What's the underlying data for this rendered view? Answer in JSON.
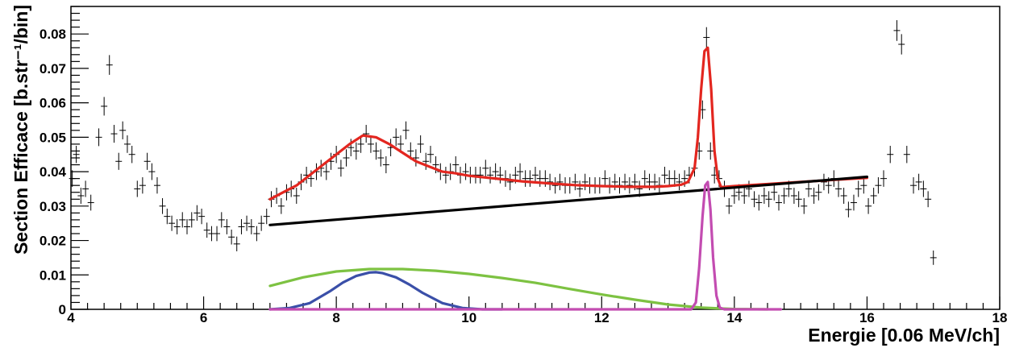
{
  "chart_data": {
    "type": "scatter",
    "xlabel": "Energie [0.06 MeV/ch]",
    "ylabel": "Section Efficace [b.str⁻¹/bin]",
    "xlim": [
      4,
      18
    ],
    "ylim": [
      0,
      0.088
    ],
    "x_ticks": [
      4,
      6,
      8,
      10,
      12,
      14,
      16,
      18
    ],
    "y_ticks": [
      0,
      0.01,
      0.02,
      0.03,
      0.04,
      0.05,
      0.06,
      0.07,
      0.08
    ],
    "y_tick_labels": [
      "0",
      "0.01",
      "0.02",
      "0.03",
      "0.04",
      "0.05",
      "0.06",
      "0.07",
      "0.08"
    ],
    "grid": false,
    "legend": "none",
    "series": [
      {
        "kind": "data-points-with-error-bars",
        "color": "#000000",
        "points": [
          [
            4.02,
            0.038
          ],
          [
            4.08,
            0.045
          ],
          [
            4.15,
            0.033
          ],
          [
            4.22,
            0.035
          ],
          [
            4.3,
            0.031
          ],
          [
            4.42,
            0.05
          ],
          [
            4.5,
            0.059
          ],
          [
            4.58,
            0.071
          ],
          [
            4.65,
            0.051
          ],
          [
            4.72,
            0.043
          ],
          [
            4.78,
            0.052
          ],
          [
            4.85,
            0.048
          ],
          [
            4.92,
            0.045
          ],
          [
            5.0,
            0.035
          ],
          [
            5.08,
            0.036
          ],
          [
            5.15,
            0.043
          ],
          [
            5.22,
            0.04
          ],
          [
            5.3,
            0.036
          ],
          [
            5.38,
            0.03
          ],
          [
            5.45,
            0.027
          ],
          [
            5.52,
            0.025
          ],
          [
            5.6,
            0.024
          ],
          [
            5.68,
            0.026
          ],
          [
            5.75,
            0.024
          ],
          [
            5.82,
            0.026
          ],
          [
            5.9,
            0.028
          ],
          [
            5.97,
            0.027
          ],
          [
            6.05,
            0.023
          ],
          [
            6.12,
            0.022
          ],
          [
            6.2,
            0.022
          ],
          [
            6.27,
            0.026
          ],
          [
            6.35,
            0.024
          ],
          [
            6.42,
            0.021
          ],
          [
            6.5,
            0.019
          ],
          [
            6.57,
            0.024
          ],
          [
            6.65,
            0.025
          ],
          [
            6.72,
            0.024
          ],
          [
            6.8,
            0.022
          ],
          [
            6.87,
            0.025
          ],
          [
            6.95,
            0.027
          ],
          [
            7.02,
            0.032
          ],
          [
            7.1,
            0.033
          ],
          [
            7.17,
            0.03
          ],
          [
            7.25,
            0.034
          ],
          [
            7.32,
            0.035
          ],
          [
            7.4,
            0.033
          ],
          [
            7.47,
            0.037
          ],
          [
            7.55,
            0.039
          ],
          [
            7.62,
            0.038
          ],
          [
            7.7,
            0.04
          ],
          [
            7.77,
            0.041
          ],
          [
            7.85,
            0.04
          ],
          [
            7.92,
            0.043
          ],
          [
            8.0,
            0.045
          ],
          [
            8.07,
            0.041
          ],
          [
            8.15,
            0.044
          ],
          [
            8.22,
            0.047
          ],
          [
            8.3,
            0.046
          ],
          [
            8.37,
            0.048
          ],
          [
            8.45,
            0.051
          ],
          [
            8.52,
            0.048
          ],
          [
            8.6,
            0.046
          ],
          [
            8.67,
            0.044
          ],
          [
            8.75,
            0.042
          ],
          [
            8.82,
            0.047
          ],
          [
            8.9,
            0.05
          ],
          [
            8.97,
            0.048
          ],
          [
            9.05,
            0.052
          ],
          [
            9.12,
            0.046
          ],
          [
            9.2,
            0.044
          ],
          [
            9.27,
            0.048
          ],
          [
            9.35,
            0.043
          ],
          [
            9.42,
            0.045
          ],
          [
            9.5,
            0.042
          ],
          [
            9.57,
            0.04
          ],
          [
            9.65,
            0.039
          ],
          [
            9.72,
            0.04
          ],
          [
            9.8,
            0.042
          ],
          [
            9.87,
            0.039
          ],
          [
            9.95,
            0.04
          ],
          [
            10.02,
            0.039
          ],
          [
            10.1,
            0.039
          ],
          [
            10.17,
            0.039
          ],
          [
            10.25,
            0.041
          ],
          [
            10.32,
            0.039
          ],
          [
            10.4,
            0.04
          ],
          [
            10.47,
            0.039
          ],
          [
            10.55,
            0.038
          ],
          [
            10.62,
            0.037
          ],
          [
            10.7,
            0.039
          ],
          [
            10.77,
            0.04
          ],
          [
            10.85,
            0.038
          ],
          [
            10.92,
            0.038
          ],
          [
            11.0,
            0.039
          ],
          [
            11.07,
            0.038
          ],
          [
            11.15,
            0.038
          ],
          [
            11.22,
            0.037
          ],
          [
            11.3,
            0.036
          ],
          [
            11.37,
            0.037
          ],
          [
            11.45,
            0.036
          ],
          [
            11.52,
            0.036
          ],
          [
            11.6,
            0.037
          ],
          [
            11.67,
            0.035
          ],
          [
            11.75,
            0.037
          ],
          [
            11.82,
            0.036
          ],
          [
            11.9,
            0.036
          ],
          [
            11.97,
            0.036
          ],
          [
            12.05,
            0.038
          ],
          [
            12.12,
            0.036
          ],
          [
            12.2,
            0.037
          ],
          [
            12.27,
            0.036
          ],
          [
            12.35,
            0.037
          ],
          [
            12.42,
            0.036
          ],
          [
            12.5,
            0.037
          ],
          [
            12.57,
            0.035
          ],
          [
            12.65,
            0.038
          ],
          [
            12.72,
            0.037
          ],
          [
            12.8,
            0.037
          ],
          [
            12.87,
            0.036
          ],
          [
            12.95,
            0.039
          ],
          [
            13.02,
            0.038
          ],
          [
            13.1,
            0.038
          ],
          [
            13.17,
            0.037
          ],
          [
            13.25,
            0.038
          ],
          [
            13.32,
            0.039
          ],
          [
            13.4,
            0.041
          ],
          [
            13.47,
            0.046
          ],
          [
            13.52,
            0.058
          ],
          [
            13.58,
            0.079
          ],
          [
            13.64,
            0.046
          ],
          [
            13.7,
            0.039
          ],
          [
            13.77,
            0.038
          ],
          [
            13.85,
            0.035
          ],
          [
            13.92,
            0.03
          ],
          [
            14.0,
            0.033
          ],
          [
            14.07,
            0.034
          ],
          [
            14.15,
            0.033
          ],
          [
            14.22,
            0.035
          ],
          [
            14.3,
            0.032
          ],
          [
            14.37,
            0.031
          ],
          [
            14.45,
            0.033
          ],
          [
            14.52,
            0.032
          ],
          [
            14.6,
            0.034
          ],
          [
            14.67,
            0.031
          ],
          [
            14.75,
            0.033
          ],
          [
            14.82,
            0.035
          ],
          [
            14.9,
            0.033
          ],
          [
            14.97,
            0.032
          ],
          [
            15.05,
            0.03
          ],
          [
            15.12,
            0.035
          ],
          [
            15.2,
            0.033
          ],
          [
            15.27,
            0.034
          ],
          [
            15.35,
            0.037
          ],
          [
            15.42,
            0.036
          ],
          [
            15.5,
            0.038
          ],
          [
            15.57,
            0.035
          ],
          [
            15.65,
            0.033
          ],
          [
            15.72,
            0.029
          ],
          [
            15.8,
            0.031
          ],
          [
            15.87,
            0.035
          ],
          [
            15.95,
            0.036
          ],
          [
            16.02,
            0.03
          ],
          [
            16.1,
            0.033
          ],
          [
            16.17,
            0.036
          ],
          [
            16.25,
            0.038
          ],
          [
            16.35,
            0.045
          ],
          [
            16.45,
            0.081
          ],
          [
            16.52,
            0.077
          ],
          [
            16.6,
            0.045
          ],
          [
            16.7,
            0.036
          ],
          [
            16.78,
            0.037
          ],
          [
            16.85,
            0.035
          ],
          [
            16.92,
            0.032
          ],
          [
            17.0,
            0.015
          ]
        ]
      },
      {
        "kind": "curve",
        "color": "#e3261f",
        "x": [
          7.0,
          7.2,
          7.4,
          7.6,
          7.8,
          8.0,
          8.2,
          8.4,
          8.6,
          8.8,
          9.0,
          9.2,
          9.4,
          9.6,
          9.8,
          10.0,
          10.4,
          10.8,
          11.2,
          11.6,
          12.0,
          12.4,
          12.8,
          13.0,
          13.2,
          13.3,
          13.4,
          13.45,
          13.5,
          13.55,
          13.6,
          13.65,
          13.7,
          13.75,
          13.8,
          14.0,
          14.5,
          15.0,
          15.5,
          16.0
        ],
        "values": [
          0.032,
          0.034,
          0.036,
          0.039,
          0.042,
          0.045,
          0.048,
          0.0505,
          0.05,
          0.048,
          0.0455,
          0.043,
          0.0415,
          0.04,
          0.0395,
          0.0388,
          0.038,
          0.0372,
          0.0366,
          0.0361,
          0.0358,
          0.0356,
          0.0356,
          0.0358,
          0.0362,
          0.037,
          0.041,
          0.05,
          0.064,
          0.075,
          0.076,
          0.064,
          0.046,
          0.038,
          0.0355,
          0.0358,
          0.0364,
          0.037,
          0.0376,
          0.0382
        ]
      },
      {
        "kind": "curve",
        "color": "#000000",
        "x": [
          7.0,
          16.0
        ],
        "values": [
          0.0245,
          0.0385
        ]
      },
      {
        "kind": "curve",
        "color": "#7dc242",
        "x": [
          7.0,
          7.5,
          8.0,
          8.5,
          9.0,
          9.5,
          10.0,
          10.5,
          11.0,
          11.5,
          12.0,
          12.5,
          13.0,
          13.5,
          14.0,
          14.5
        ],
        "values": [
          0.0068,
          0.0093,
          0.011,
          0.0117,
          0.0117,
          0.0112,
          0.0103,
          0.0091,
          0.0077,
          0.006,
          0.0043,
          0.0028,
          0.0014,
          0.0005,
          0.0001,
          0.0
        ]
      },
      {
        "kind": "curve",
        "color": "#3a4fa8",
        "x": [
          7.0,
          7.3,
          7.6,
          7.9,
          8.1,
          8.3,
          8.5,
          8.6,
          8.7,
          8.9,
          9.1,
          9.3,
          9.6,
          9.9,
          10.2,
          10.5
        ],
        "values": [
          0.0,
          0.0004,
          0.0018,
          0.0052,
          0.0078,
          0.0097,
          0.0107,
          0.0108,
          0.0105,
          0.0093,
          0.0072,
          0.0048,
          0.0018,
          0.0004,
          0.0,
          0.0
        ]
      },
      {
        "kind": "curve",
        "color": "#c34cb1",
        "x": [
          7.0,
          13.35,
          13.42,
          13.47,
          13.52,
          13.56,
          13.6,
          13.64,
          13.68,
          13.73,
          13.78,
          13.85,
          14.7
        ],
        "values": [
          0.0,
          0.0,
          0.002,
          0.012,
          0.027,
          0.036,
          0.037,
          0.029,
          0.015,
          0.004,
          0.0005,
          0.0,
          0.0
        ]
      }
    ]
  }
}
